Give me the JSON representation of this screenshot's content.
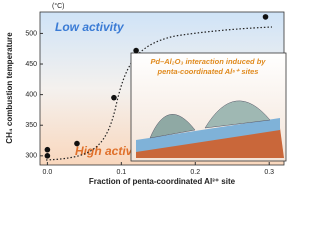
{
  "chart_data": {
    "type": "scatter",
    "unit": "(°C)",
    "y_label": "CH₄ combustion temperature",
    "x_label": "Fraction of penta-coordinated Al³⁺ site",
    "annotations": [
      "Low activity",
      "High activity"
    ],
    "inset_text": [
      "Pd–Al₂O₃ interaction induced by",
      "penta-coordinated Al⁵⁺ sites"
    ],
    "x": [
      0,
      0,
      0.04,
      0.09,
      0.12,
      0.295
    ],
    "values": [
      300,
      310,
      320,
      395,
      472,
      527
    ],
    "color": "#111111",
    "xlim": [
      -0.01,
      0.32
    ],
    "ylim": [
      285,
      535
    ],
    "xticks": [
      {
        "value": 0,
        "label": "0.0"
      },
      0.1,
      0.2,
      0.3
    ],
    "yticks": [
      300,
      350,
      400,
      450,
      500
    ]
  }
}
